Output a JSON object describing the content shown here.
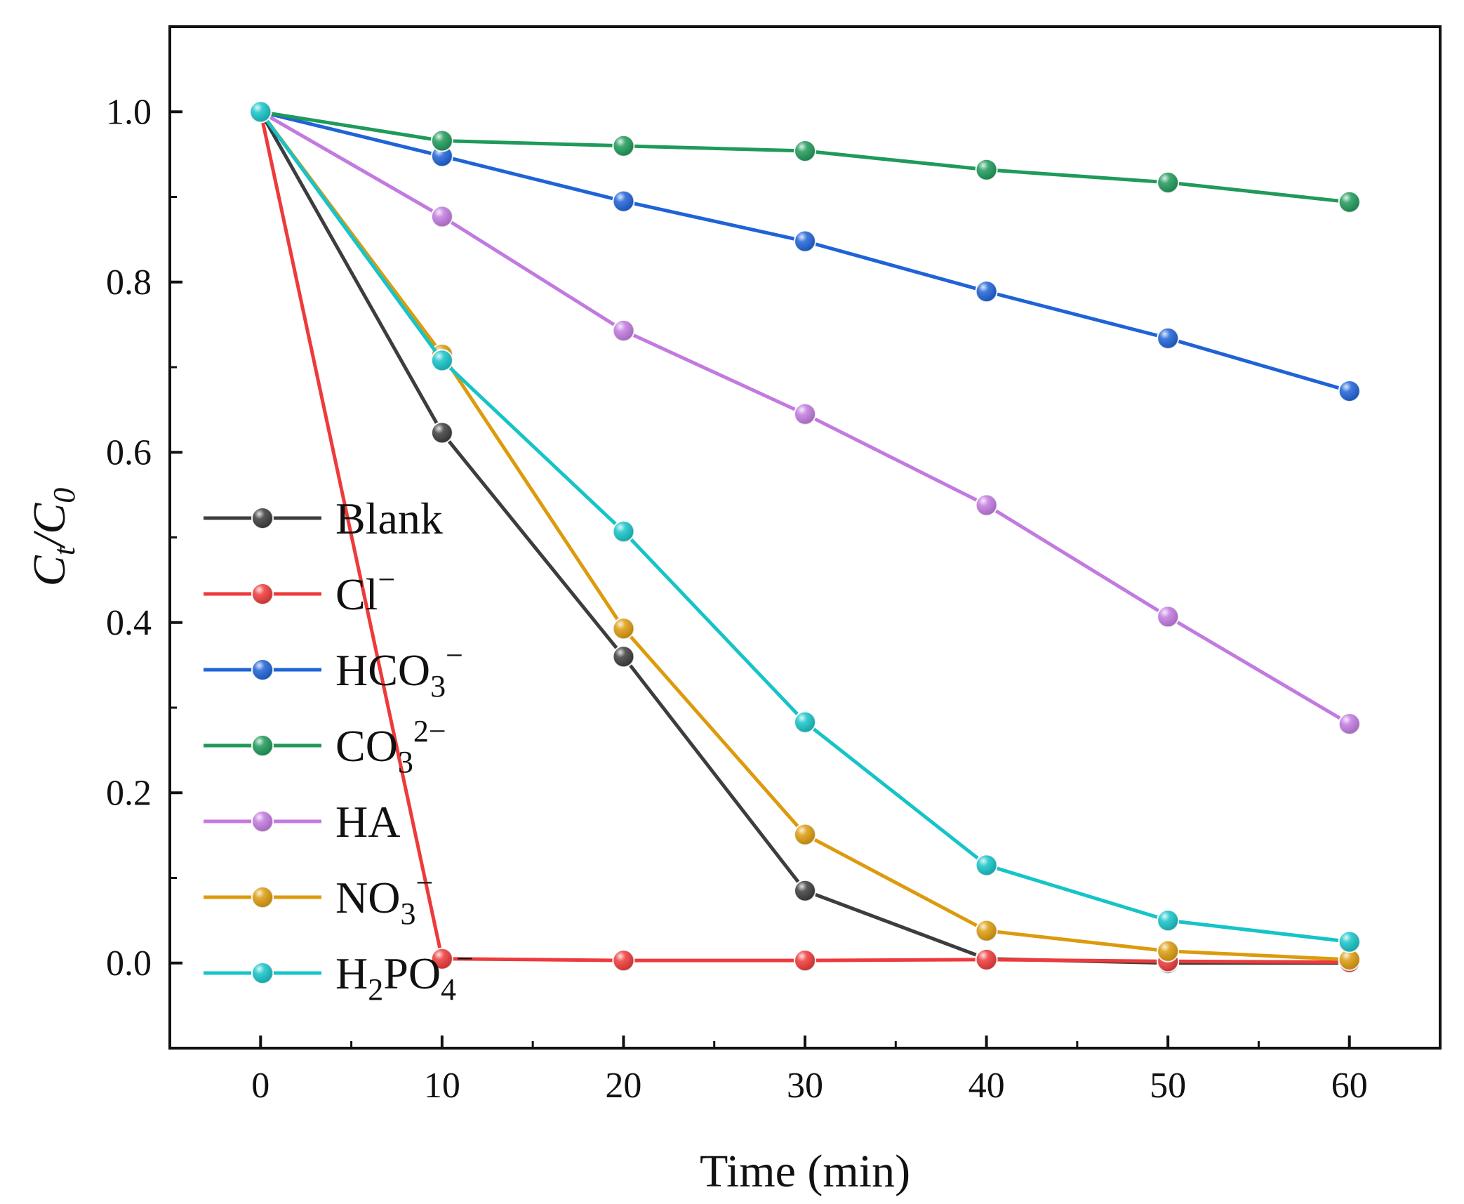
{
  "chart_data": {
    "type": "line",
    "xlabel": "Time (min)",
    "ylabel_main": "C",
    "ylabel_t": "t",
    "ylabel_0": "0",
    "xlim": [
      -5,
      65
    ],
    "ylim": [
      -0.1,
      1.1
    ],
    "x": [
      0,
      10,
      20,
      30,
      40,
      50,
      60
    ],
    "x_ticks": [
      0,
      10,
      20,
      30,
      40,
      50,
      60
    ],
    "y_ticks": [
      0.0,
      0.2,
      0.4,
      0.6,
      0.8,
      1.0
    ],
    "grid": false,
    "legend_position": "left",
    "series": [
      {
        "key": "blank",
        "name": "Blank",
        "color": "#3d3d3d",
        "values": [
          1.0,
          0.623,
          0.36,
          0.085,
          0.005,
          0.0,
          0.0
        ]
      },
      {
        "key": "cl",
        "name": "Cl",
        "sup": "−",
        "sub": "",
        "color": "#ee3a3a",
        "values": [
          1.0,
          0.005,
          0.003,
          0.003,
          0.004,
          0.002,
          0.001
        ]
      },
      {
        "key": "hco3",
        "name": "HCO",
        "sub": "3",
        "sup": "−",
        "color": "#1f63d6",
        "values": [
          1.0,
          0.948,
          0.895,
          0.848,
          0.789,
          0.734,
          0.672
        ]
      },
      {
        "key": "co3",
        "name": "CO",
        "sub": "3",
        "sup": "2−",
        "color": "#1f9a5a",
        "values": [
          1.0,
          0.966,
          0.96,
          0.954,
          0.932,
          0.917,
          0.894
        ]
      },
      {
        "key": "ha",
        "name": "HA",
        "color": "#c27ae0",
        "values": [
          1.0,
          0.877,
          0.743,
          0.645,
          0.538,
          0.407,
          0.281
        ]
      },
      {
        "key": "no3",
        "name": "NO",
        "sub": "3",
        "sup": "−",
        "color": "#dc9b0d",
        "values": [
          1.0,
          0.715,
          0.393,
          0.151,
          0.038,
          0.014,
          0.004
        ]
      },
      {
        "key": "h2po4",
        "name_parts": [
          "H",
          "2",
          "PO",
          "4"
        ],
        "sup": "−",
        "color": "#16c4c8",
        "values": [
          1.0,
          0.708,
          0.507,
          0.283,
          0.115,
          0.05,
          0.025
        ]
      }
    ]
  }
}
